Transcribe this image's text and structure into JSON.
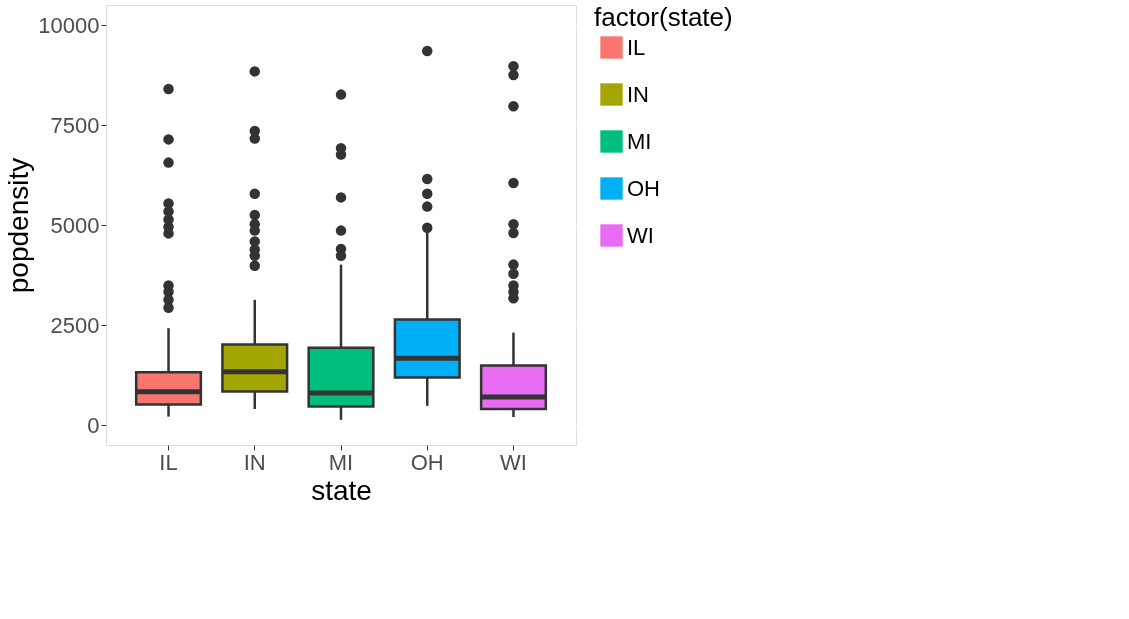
{
  "chart_data": {
    "type": "box",
    "xlabel": "state",
    "ylabel": "popdensity",
    "legend_title": "factor(state)",
    "legend": "right",
    "grid": true,
    "categories": [
      "IL",
      "IN",
      "MI",
      "OH",
      "WI"
    ],
    "ylim": [
      -500,
      10500
    ],
    "yticks": [
      0,
      2500,
      5000,
      7500,
      10000
    ],
    "series": [
      {
        "name": "IL",
        "color": "#f8766d",
        "boxes": [
          {
            "low": 210,
            "q1": 510,
            "median": 830,
            "q3": 1320,
            "high": 2420,
            "outliers": [
              8400,
              7140,
              6560,
              5540,
              5340,
              5140,
              4950,
              4790,
              3490,
              3330,
              3130,
              2930
            ]
          },
          null,
          null,
          null,
          null
        ]
      },
      {
        "name": "IN",
        "color": "#a3a500",
        "boxes": [
          null,
          {
            "low": 400,
            "q1": 840,
            "median": 1330,
            "q3": 2010,
            "high": 3130,
            "outliers": [
              8840,
              7350,
              7160,
              5780,
              5250,
              5020,
              4860,
              4590,
              4390,
              4230,
              3980
            ]
          },
          null,
          null,
          null
        ]
      },
      {
        "name": "MI",
        "color": "#00bf7d",
        "boxes": [
          null,
          null,
          {
            "low": 130,
            "q1": 460,
            "median": 800,
            "q3": 1930,
            "high": 4010,
            "outliers": [
              8260,
              6920,
              6760,
              5690,
              4860,
              4400,
              4230
            ]
          },
          null,
          null
        ]
      },
      {
        "name": "OH",
        "color": "#00b0f6",
        "boxes": [
          null,
          null,
          null,
          {
            "low": 480,
            "q1": 1190,
            "median": 1670,
            "q3": 2640,
            "high": 4900,
            "outliers": [
              9350,
              6150,
              5780,
              5460,
              4930
            ]
          },
          null
        ]
      },
      {
        "name": "WI",
        "color": "#e76bf3",
        "boxes": [
          null,
          null,
          null,
          null,
          {
            "low": 200,
            "q1": 400,
            "median": 700,
            "q3": 1490,
            "high": 2310,
            "outliers": [
              8970,
              8750,
              7970,
              6050,
              5020,
              4800,
              4010,
              3780,
              3490,
              3330,
              3170
            ]
          }
        ]
      }
    ]
  }
}
